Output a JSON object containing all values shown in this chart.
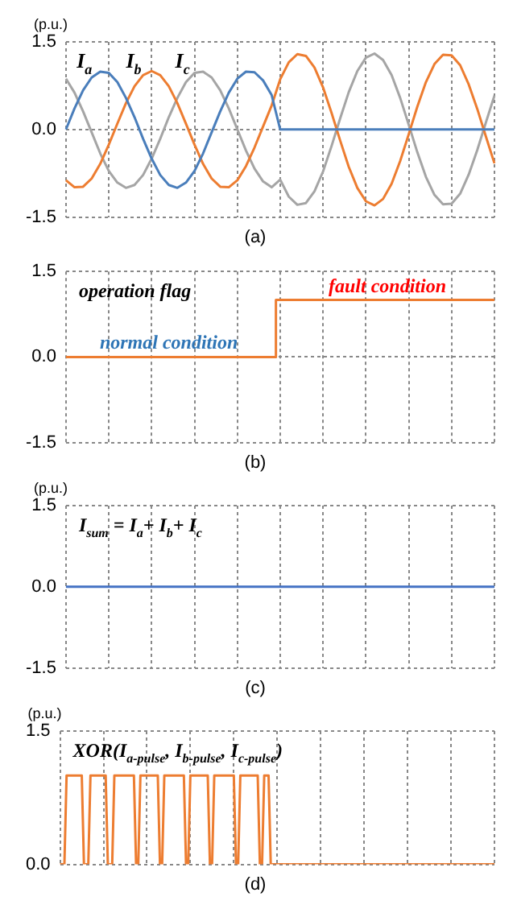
{
  "chart_data": [
    {
      "type": "line",
      "title": "(a)",
      "ylabel": "(p.u.)",
      "categories": [
        null,
        null,
        null,
        null,
        null,
        null,
        null,
        null,
        null,
        null,
        null,
        null,
        null,
        null,
        null,
        null,
        null,
        null,
        null,
        null,
        null,
        null,
        null,
        null,
        null,
        null,
        null,
        null,
        null,
        null,
        null,
        null,
        null,
        null,
        null,
        null,
        null,
        null,
        null,
        null,
        null,
        null,
        null,
        null,
        null,
        null,
        null,
        null,
        null,
        null,
        null
      ],
      "series": [
        {
          "name": "I$_{a}$",
          "color": "#4a7ebb",
          "values": [
            0,
            0.36,
            0.67,
            0.89,
            0.99,
            0.97,
            0.81,
            0.54,
            0.21,
            -0.16,
            -0.5,
            -0.78,
            -0.95,
            -1,
            -0.91,
            -0.71,
            -0.41,
            -0.05,
            0.31,
            0.63,
            0.87,
            0.99,
            0.98,
            0.84,
            0.59,
            0,
            0,
            0,
            0,
            0,
            0,
            0,
            0,
            0,
            0,
            0,
            0,
            0,
            0,
            0,
            0,
            0,
            0,
            0,
            0,
            0,
            0,
            0,
            0,
            0,
            0
          ]
        },
        {
          "name": "I$_{b}$",
          "color": "#ed7d31",
          "values": [
            -0.87,
            -0.99,
            -0.98,
            -0.84,
            -0.59,
            -0.26,
            0.1,
            0.45,
            0.74,
            0.93,
            1,
            0.93,
            0.74,
            0.45,
            0.1,
            -0.26,
            -0.59,
            -0.84,
            -0.98,
            -0.99,
            -0.87,
            -0.63,
            -0.31,
            0.05,
            0.41,
            0.86,
            1.15,
            1.29,
            1.26,
            1.06,
            0.72,
            0.28,
            -0.19,
            -0.64,
            -1,
            -1.23,
            -1.3,
            -1.19,
            -0.93,
            -0.54,
            -0.08,
            0.39,
            0.81,
            1.12,
            1.28,
            1.27,
            1.1,
            0.77,
            0.35,
            -0.12,
            -0.58
          ]
        },
        {
          "name": "I$_{c}$",
          "color": "#a5a5a5",
          "values": [
            0.87,
            0.63,
            0.31,
            -0.05,
            -0.41,
            -0.71,
            -0.91,
            -1,
            -0.95,
            -0.78,
            -0.5,
            -0.16,
            0.21,
            0.54,
            0.81,
            0.97,
            0.99,
            0.89,
            0.67,
            0.36,
            0,
            -0.36,
            -0.67,
            -0.89,
            -0.99,
            -0.86,
            -1.15,
            -1.29,
            -1.26,
            -1.06,
            -0.72,
            -0.28,
            0.19,
            0.64,
            1,
            1.23,
            1.3,
            1.19,
            0.93,
            0.54,
            0.08,
            -0.39,
            -0.81,
            -1.12,
            -1.28,
            -1.27,
            -1.1,
            -0.77,
            -0.35,
            0.12,
            0.58
          ]
        }
      ],
      "ylim": [
        -1.5,
        1.5
      ],
      "yticks": [
        {
          "value": -1.5,
          "label": "-1.5"
        },
        {
          "value": 0,
          "label": "0.0"
        },
        {
          "value": 1.5,
          "label": "1.5"
        }
      ],
      "tick_labels": "y",
      "grid": true,
      "legend": false,
      "marker": "none"
    },
    {
      "type": "step",
      "title": "(b)",
      "categories": [
        null,
        null,
        null,
        null,
        null,
        null,
        null,
        null,
        null,
        null,
        null,
        null,
        null,
        null,
        null,
        null,
        null,
        null,
        null,
        null,
        null,
        null,
        null,
        null,
        null,
        null,
        null,
        null,
        null,
        null,
        null,
        null,
        null,
        null,
        null,
        null,
        null,
        null,
        null,
        null,
        null,
        null,
        null,
        null,
        null,
        null,
        null,
        null,
        null,
        null,
        null
      ],
      "series": [
        {
          "color": "#ed7d31",
          "values": [
            0,
            0,
            0,
            0,
            0,
            0,
            0,
            0,
            0,
            0,
            0,
            0,
            0,
            0,
            0,
            0,
            0,
            0,
            0,
            0,
            0,
            0,
            0,
            0,
            0,
            1,
            1,
            1,
            1,
            1,
            1,
            1,
            1,
            1,
            1,
            1,
            1,
            1,
            1,
            1,
            1,
            1,
            1,
            1,
            1,
            1,
            1,
            1,
            1,
            1,
            1
          ]
        }
      ],
      "annotations": [
        "operation flag",
        {
          "text": "normal condition",
          "y": 0
        },
        {
          "text": "fault condition",
          "y": 1
        }
      ],
      "ylim": [
        -1.5,
        1.5
      ],
      "yticks": [
        {
          "value": -1.5,
          "label": "-1.5"
        },
        {
          "value": 0,
          "label": "0.0"
        },
        {
          "value": 1.5,
          "label": "1.5"
        }
      ],
      "tick_labels": "y",
      "grid": true,
      "legend": false,
      "marker": "none"
    },
    {
      "type": "line",
      "title": "(c)",
      "ylabel": "(p.u.)",
      "categories": [
        null,
        null,
        null,
        null,
        null,
        null,
        null,
        null,
        null,
        null,
        null
      ],
      "series": [
        {
          "color": "#4472c4",
          "values": [
            0,
            0,
            0,
            0,
            0,
            0,
            0,
            0,
            0,
            0,
            0
          ]
        }
      ],
      "annotations": [
        "I$_{sum}$ = I$_{a}$+ I$_{b}$+ I$_{c}$"
      ],
      "ylim": [
        -1.5,
        1.5
      ],
      "yticks": [
        {
          "value": -1.5,
          "label": "-1.5"
        },
        {
          "value": 0,
          "label": "0.0"
        },
        {
          "value": 1.5,
          "label": "1.5"
        }
      ],
      "tick_labels": "y",
      "grid": true,
      "legend": false,
      "marker": "none"
    },
    {
      "type": "line",
      "title": "(d)",
      "ylabel": "(p.u.)",
      "categories": [
        null,
        null,
        null,
        null,
        null,
        null,
        null,
        null,
        null,
        null,
        null,
        null,
        null,
        null,
        null,
        null,
        null,
        null,
        null,
        null,
        null,
        null,
        null,
        null,
        null,
        null,
        null,
        null,
        null,
        null,
        null,
        null,
        null,
        null,
        null,
        null,
        null,
        null,
        null,
        null,
        null,
        null,
        null,
        null,
        null,
        null,
        null,
        null,
        null,
        null,
        null,
        null,
        null,
        null,
        null,
        null,
        null,
        null,
        null,
        null,
        null,
        null,
        null,
        null,
        null,
        null,
        null,
        null,
        null,
        null,
        null,
        null,
        null,
        null,
        null,
        null,
        null,
        null,
        null,
        null,
        null,
        null,
        null,
        null,
        null,
        null,
        null,
        null,
        null,
        null,
        null,
        null,
        null,
        null,
        null,
        null,
        null,
        null,
        null,
        null,
        null,
        null,
        null,
        null,
        null,
        null,
        null,
        null,
        null,
        null,
        null,
        null,
        null,
        null,
        null,
        null,
        null,
        null,
        null,
        null,
        null,
        null,
        null,
        null,
        null,
        null,
        null,
        null,
        null,
        null,
        null,
        null,
        null,
        null,
        null,
        null,
        null,
        null,
        null,
        null,
        null,
        null,
        null,
        null,
        null,
        null,
        null,
        null,
        null,
        null,
        null,
        null,
        null,
        null,
        null,
        null,
        null,
        null,
        null,
        null,
        null,
        null,
        null,
        null,
        null,
        null,
        null,
        null,
        null,
        null,
        null,
        null,
        null,
        null,
        null,
        null,
        null,
        null,
        null,
        null,
        null,
        null,
        null,
        null,
        null,
        null,
        null,
        null,
        null,
        null,
        null,
        null,
        null,
        null,
        null,
        null,
        null,
        null,
        null,
        null,
        null
      ],
      "series": [
        {
          "color": "#ed7d31",
          "values": [
            0,
            0,
            0,
            1,
            1,
            1,
            1,
            1,
            1,
            1,
            1,
            0,
            0,
            0,
            1,
            1,
            1,
            1,
            1,
            1,
            1,
            1,
            0,
            0,
            0,
            1,
            1,
            1,
            1,
            1,
            1,
            1,
            1,
            1,
            1,
            0,
            0,
            1,
            1,
            1,
            1,
            1,
            1,
            1,
            1,
            1,
            0,
            0,
            1,
            1,
            1,
            1,
            1,
            1,
            1,
            1,
            1,
            1,
            0,
            0,
            1,
            1,
            1,
            1,
            1,
            1,
            1,
            1,
            1,
            0,
            0,
            1,
            1,
            1,
            1,
            1,
            1,
            1,
            1,
            1,
            1,
            0,
            0,
            1,
            1,
            1,
            1,
            1,
            1,
            1,
            1,
            1,
            0,
            0,
            1,
            1,
            1,
            0,
            0,
            0,
            0,
            0,
            0,
            0,
            0,
            0,
            0,
            0,
            0,
            0,
            0,
            0,
            0,
            0,
            0,
            0,
            0,
            0,
            0,
            0,
            0,
            0,
            0,
            0,
            0,
            0,
            0,
            0,
            0,
            0,
            0,
            0,
            0,
            0,
            0,
            0,
            0,
            0,
            0,
            0,
            0,
            0,
            0,
            0,
            0,
            0,
            0,
            0,
            0,
            0,
            0,
            0,
            0,
            0,
            0,
            0,
            0,
            0,
            0,
            0,
            0,
            0,
            0,
            0,
            0,
            0,
            0,
            0,
            0,
            0,
            0,
            0,
            0,
            0,
            0,
            0,
            0,
            0,
            0,
            0,
            0,
            0,
            0,
            0,
            0,
            0,
            0,
            0,
            0,
            0,
            0,
            0,
            0,
            0,
            0,
            0,
            0,
            0,
            0,
            0,
            0
          ]
        }
      ],
      "annotations": [
        "XOR(I$_{a-pulse}$, I$_{b-pulse}$, I$_{c-pulse}$)"
      ],
      "ylim": [
        0,
        1.5
      ],
      "yticks": [
        {
          "value": 0,
          "label": "0.0"
        },
        {
          "value": 1.5,
          "label": "1.5"
        }
      ],
      "tick_labels": "y",
      "grid": true,
      "legend": false,
      "marker": "none"
    }
  ]
}
